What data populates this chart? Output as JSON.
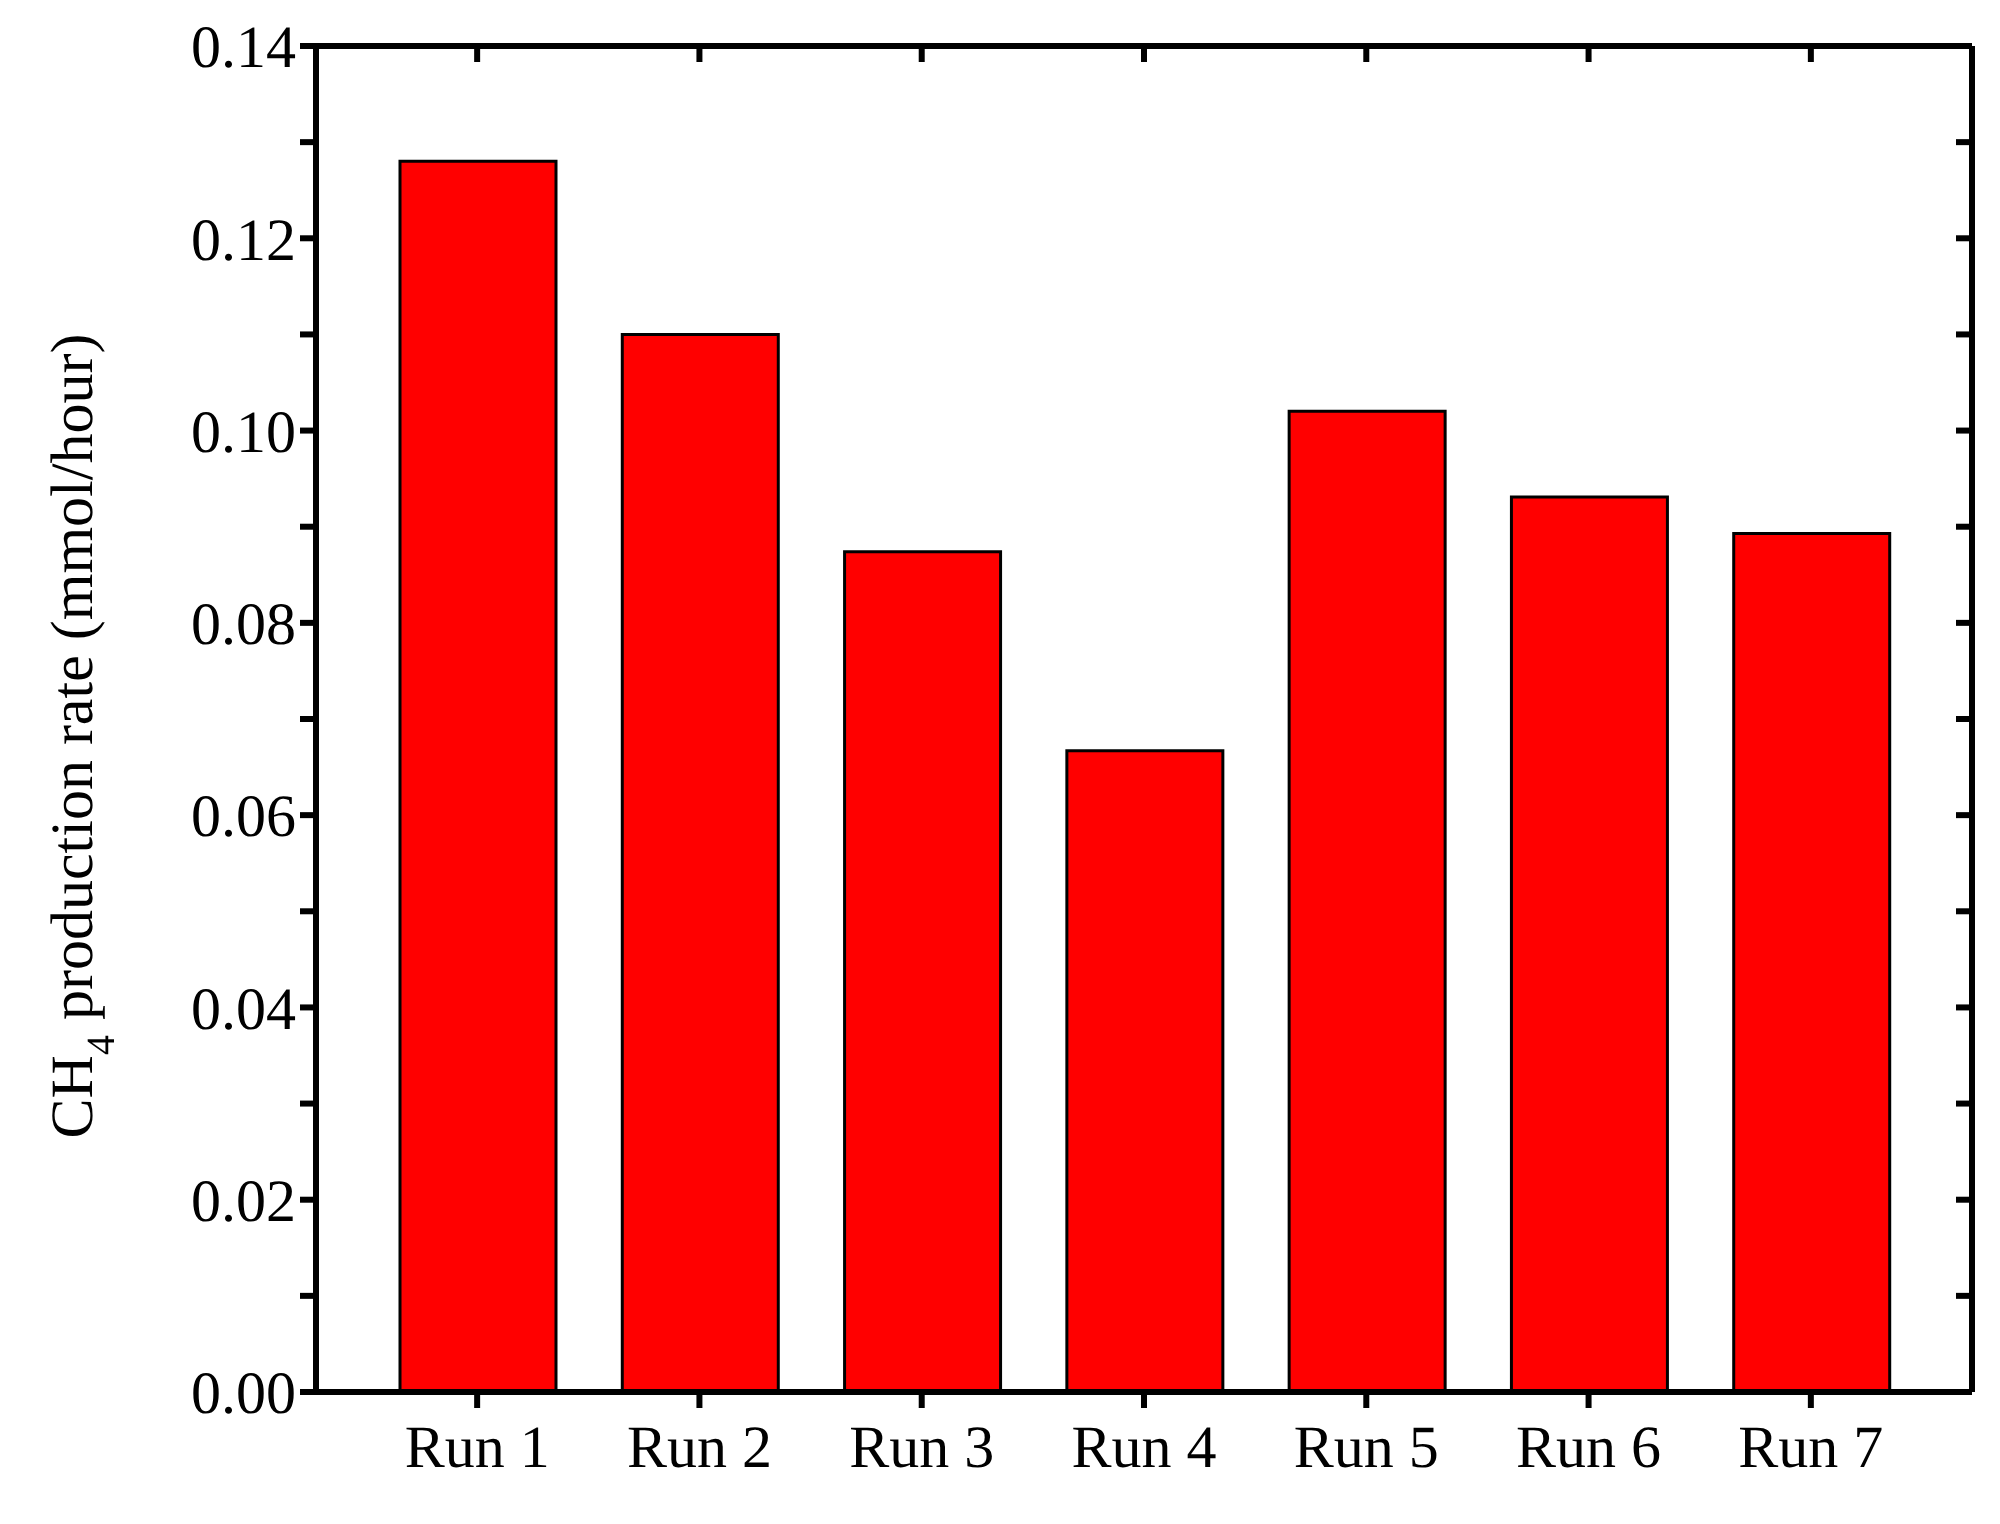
{
  "chart_data": {
    "type": "bar",
    "ylabel": "CH$_{4}$ production rate (mmol/hour)",
    "categories": [
      "Run 1",
      "Run 2",
      "Run 3",
      "Run 4",
      "Run 5",
      "Run 6",
      "Run 7"
    ],
    "values": [
      0.128,
      0.11,
      0.0874,
      0.0667,
      0.102,
      0.0931,
      0.0893
    ],
    "color": "#ff0000",
    "ylim": [
      0,
      0.14
    ],
    "yticks": [
      {
        "value": 0,
        "label": "0.00"
      },
      {
        "value": 0.01,
        "label": null
      },
      {
        "value": 0.02,
        "label": "0.02"
      },
      {
        "value": 0.03,
        "label": null
      },
      {
        "value": 0.04,
        "label": "0.04"
      },
      {
        "value": 0.05,
        "label": null
      },
      {
        "value": 0.06,
        "label": "0.06"
      },
      {
        "value": 0.07,
        "label": null
      },
      {
        "value": 0.08,
        "label": "0.08"
      },
      {
        "value": 0.09,
        "label": null
      },
      {
        "value": 0.1,
        "label": "0.10"
      },
      {
        "value": 0.11,
        "label": null
      },
      {
        "value": 0.12,
        "label": "0.12"
      },
      {
        "value": 0.13,
        "label": null
      },
      {
        "value": 0.14,
        "label": "0.14"
      }
    ],
    "grid": false,
    "legend": false
  }
}
